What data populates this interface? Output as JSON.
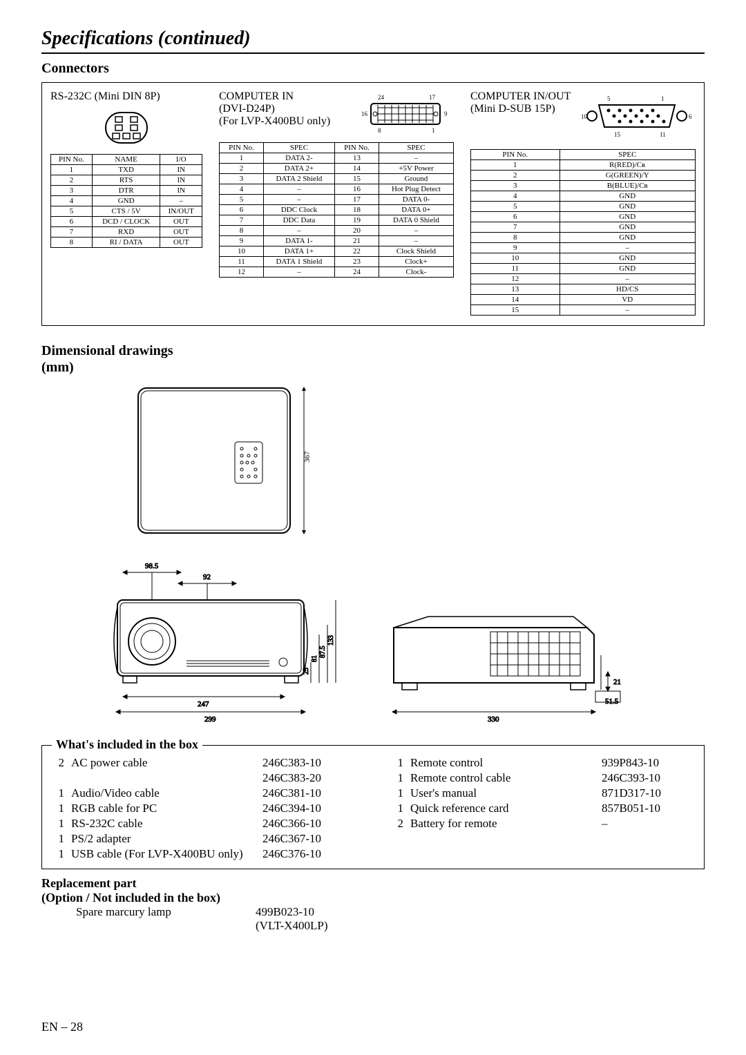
{
  "title": "Specifications (continued)",
  "sections": {
    "connectors": "Connectors",
    "dims": "Dimensional drawings (mm)",
    "included": "What's included in the box",
    "replacement_h1": "Replacement part",
    "replacement_h2": "(Option / Not included in the box)"
  },
  "rs232": {
    "title": "RS-232C (Mini DIN 8P)",
    "headers": [
      "PIN No.",
      "NAME",
      "I/O"
    ],
    "rows": [
      [
        "1",
        "TXD",
        "IN"
      ],
      [
        "2",
        "RTS",
        "IN"
      ],
      [
        "3",
        "DTR",
        "IN"
      ],
      [
        "4",
        "GND",
        "–"
      ],
      [
        "5",
        "CTS / 5V",
        "IN/OUT"
      ],
      [
        "6",
        "DCD / CLOCK",
        "OUT"
      ],
      [
        "7",
        "RXD",
        "OUT"
      ],
      [
        "8",
        "RI / DATA",
        "OUT"
      ]
    ]
  },
  "dvi": {
    "title": "COMPUTER IN",
    "sub": "(DVI-D24P)",
    "note": "(For LVP-X400BU only)",
    "headers": [
      "PIN No.",
      "SPEC",
      "PIN No.",
      "SPEC"
    ],
    "rows": [
      [
        "1",
        "DATA 2-",
        "13",
        "–"
      ],
      [
        "2",
        "DATA 2+",
        "14",
        "+5V Power"
      ],
      [
        "3",
        "DATA 2 Shield",
        "15",
        "Ground"
      ],
      [
        "4",
        "–",
        "16",
        "Hot Plug Detect"
      ],
      [
        "5",
        "–",
        "17",
        "DATA 0-"
      ],
      [
        "6",
        "DDC Clock",
        "18",
        "DATA 0+"
      ],
      [
        "7",
        "DDC Data",
        "19",
        "DATA 0 Shield"
      ],
      [
        "8",
        "–",
        "20",
        "–"
      ],
      [
        "9",
        "DATA 1-",
        "21",
        "–"
      ],
      [
        "10",
        "DATA 1+",
        "22",
        "Clock Shield"
      ],
      [
        "11",
        "DATA 1 Shield",
        "23",
        "Clock+"
      ],
      [
        "12",
        "–",
        "24",
        "Clock-"
      ]
    ],
    "pin_labels": {
      "tl": "24",
      "tr": "17",
      "bl": "8",
      "br": "1",
      "ml": "16",
      "mr": "9"
    }
  },
  "dsub": {
    "title": "COMPUTER IN/OUT",
    "sub": "(Mini D-SUB 15P)",
    "headers": [
      "PIN No.",
      "SPEC"
    ],
    "rows": [
      [
        "1",
        "R(RED)/Cʀ"
      ],
      [
        "2",
        "G(GREEN)/Y"
      ],
      [
        "3",
        "B(BLUE)/Cʙ"
      ],
      [
        "4",
        "GND"
      ],
      [
        "5",
        "GND"
      ],
      [
        "6",
        "GND"
      ],
      [
        "7",
        "GND"
      ],
      [
        "8",
        "GND"
      ],
      [
        "9",
        "–"
      ],
      [
        "10",
        "GND"
      ],
      [
        "11",
        "GND"
      ],
      [
        "12",
        "–"
      ],
      [
        "13",
        "HD/CS"
      ],
      [
        "14",
        "VD"
      ],
      [
        "15",
        "–"
      ]
    ],
    "pin_labels": {
      "tl": "5",
      "tr": "1",
      "ml": "10",
      "mr": "6",
      "bl": "15",
      "br": "11"
    }
  },
  "dims": {
    "top_h": "367",
    "front_v1": "98.5",
    "front_v2": "92",
    "front_h1": "25",
    "front_h2": "81",
    "front_h3": "87.5",
    "front_h4": "133",
    "front_b1": "247",
    "front_b2": "299",
    "side_w": "330",
    "side_h1": "21",
    "side_h2": "51.5"
  },
  "included_left": [
    {
      "qty": "2",
      "name": "AC power cable",
      "part": "246C383-10"
    },
    {
      "qty": "",
      "name": "",
      "part": "246C383-20"
    },
    {
      "qty": "1",
      "name": "Audio/Video cable",
      "part": "246C381-10"
    },
    {
      "qty": "1",
      "name": "RGB cable for PC",
      "part": "246C394-10"
    },
    {
      "qty": "1",
      "name": "RS-232C cable",
      "part": "246C366-10"
    },
    {
      "qty": "1",
      "name": "PS/2 adapter",
      "part": "246C367-10"
    },
    {
      "qty": "1",
      "name": "USB cable (For LVP-X400BU only)",
      "part": "246C376-10"
    }
  ],
  "included_right": [
    {
      "qty": "1",
      "name": "Remote control",
      "part": "939P843-10"
    },
    {
      "qty": "1",
      "name": "Remote control cable",
      "part": "246C393-10"
    },
    {
      "qty": "1",
      "name": "User's manual",
      "part": "871D317-10"
    },
    {
      "qty": "1",
      "name": "Quick reference card",
      "part": "857B051-10"
    },
    {
      "qty": "2",
      "name": "Battery for remote",
      "part": "–"
    }
  ],
  "replacement": {
    "name": "Spare marcury lamp",
    "part1": "499B023-10",
    "part2": "(VLT-X400LP)"
  },
  "page": "EN – 28"
}
